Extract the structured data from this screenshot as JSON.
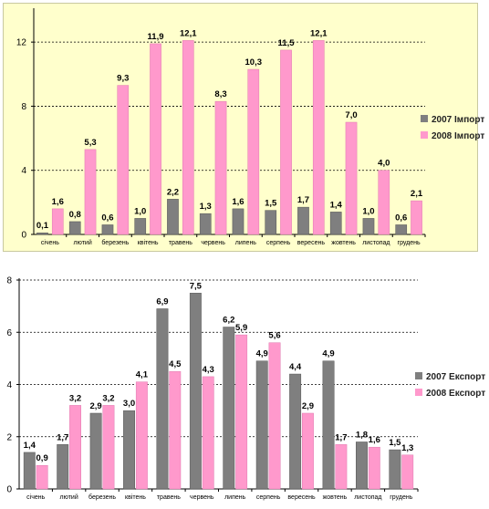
{
  "chart_data": [
    {
      "type": "bar",
      "categories": [
        "січень",
        "лютий",
        "березень",
        "квітень",
        "травень",
        "червень",
        "липень",
        "серпень",
        "вересень",
        "жовтень",
        "листопад",
        "грудень"
      ],
      "series": [
        {
          "name": "2007 Імпорт",
          "color": "#7f7f7f",
          "values": [
            0.1,
            0.8,
            0.6,
            1.0,
            2.2,
            1.3,
            1.6,
            1.5,
            1.7,
            1.4,
            1.0,
            0.6
          ],
          "labels": [
            "0,1",
            "0,8",
            "0,6",
            "1,0",
            "2,2",
            "1,3",
            "1,6",
            "1,5",
            "1,7",
            "1,4",
            "1,0",
            "0,6"
          ]
        },
        {
          "name": "2008 Імпорт",
          "color": "#ff99cc",
          "values": [
            1.6,
            5.3,
            9.3,
            11.9,
            12.1,
            8.3,
            10.3,
            11.5,
            12.1,
            7.0,
            4.0,
            2.1
          ],
          "labels": [
            "1,6",
            "5,3",
            "9,3",
            "11,9",
            "12,1",
            "8,3",
            "10,3",
            "11,5",
            "12,1",
            "7,0",
            "4,0",
            "2,1"
          ]
        }
      ],
      "yticks": [
        "0",
        "4",
        "8",
        "12"
      ],
      "ylim": [
        0,
        14
      ],
      "grid": true,
      "legend_position": "right",
      "background": "#ffffcc"
    },
    {
      "type": "bar",
      "categories": [
        "січень",
        "лютий",
        "березень",
        "квітень",
        "травень",
        "червень",
        "липень",
        "серпень",
        "вересень",
        "жовтень",
        "листопад",
        "грудень"
      ],
      "series": [
        {
          "name": "2007 Експорт",
          "color": "#7f7f7f",
          "values": [
            1.4,
            1.7,
            2.9,
            3.0,
            6.9,
            7.5,
            6.2,
            4.9,
            4.4,
            4.9,
            1.8,
            1.5
          ],
          "labels": [
            "1,4",
            "1,7",
            "2,9",
            "3,0",
            "6,9",
            "7,5",
            "6,2",
            "4,9",
            "4,4",
            "4,9",
            "1,8",
            "1,5"
          ]
        },
        {
          "name": "2008 Експорт",
          "color": "#ff99cc",
          "values": [
            0.9,
            3.2,
            3.2,
            4.1,
            4.5,
            4.3,
            5.9,
            5.6,
            2.9,
            1.7,
            1.6,
            1.3
          ],
          "labels": [
            "0,9",
            "3,2",
            "3,2",
            "4,1",
            "4,5",
            "4,3",
            "5,9",
            "5,6",
            "2,9",
            "1,7",
            "1,6",
            "1,3"
          ]
        }
      ],
      "yticks": [
        "0",
        "2",
        "4",
        "6",
        "8"
      ],
      "ylim": [
        0,
        8
      ],
      "grid": true,
      "legend_position": "right",
      "background": "#ffffff"
    }
  ]
}
